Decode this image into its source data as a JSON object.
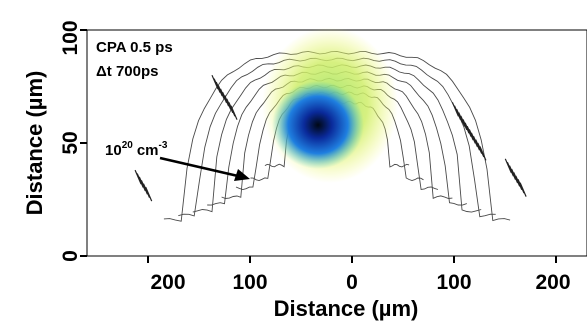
{
  "chart_data": {
    "type": "contour",
    "xlabel": "Distance (µm)",
    "ylabel": "Distance (µm)",
    "xlim": [
      -260,
      260
    ],
    "ylim": [
      0,
      100
    ],
    "x_ticks": [
      {
        "value": -200,
        "label": "200"
      },
      {
        "value": -100,
        "label": "100"
      },
      {
        "value": 0,
        "label": "0"
      },
      {
        "value": 100,
        "label": "100"
      },
      {
        "value": 200,
        "label": "200"
      }
    ],
    "y_ticks": [
      {
        "value": 0,
        "label": "0"
      },
      {
        "value": 50,
        "label": "50"
      },
      {
        "value": 100,
        "label": "100"
      }
    ],
    "annotations": {
      "pulse": "CPA 0.5 ps",
      "delay": "Δt 700ps",
      "density_base": "10",
      "density_exp": "20",
      "density_unit": "cm",
      "density_unit_exp": "-3"
    },
    "contour_levels": [
      {
        "half_width": 55,
        "peak": 68,
        "base": 40
      },
      {
        "half_width": 70,
        "peak": 72,
        "base": 34
      },
      {
        "half_width": 85,
        "peak": 75,
        "base": 30
      },
      {
        "half_width": 100,
        "peak": 78,
        "base": 26
      },
      {
        "half_width": 115,
        "peak": 81,
        "base": 23
      },
      {
        "half_width": 130,
        "peak": 84,
        "base": 20
      },
      {
        "half_width": 145,
        "peak": 87,
        "base": 18
      },
      {
        "half_width": 160,
        "peak": 90,
        "base": 16
      }
    ],
    "colormap": [
      "#f4f96a",
      "#9fe36c",
      "#3fc8c2",
      "#1f7fe0",
      "#0a2a9a",
      "#000814"
    ]
  }
}
